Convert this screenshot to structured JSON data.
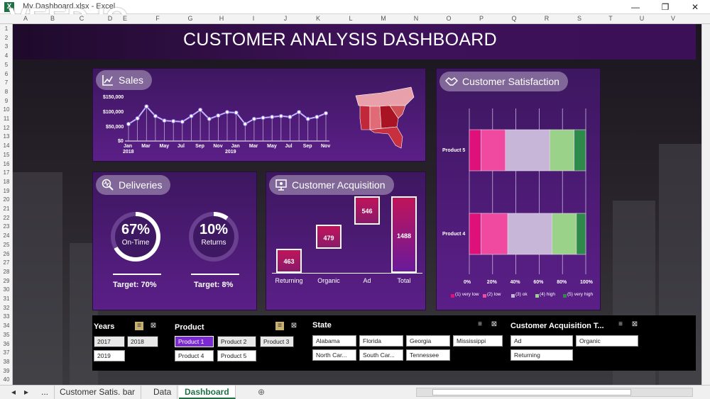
{
  "window": {
    "title": "My Dashboard.xlsx - Excel",
    "watermark": "VEED.IO"
  },
  "columns": [
    "A",
    "B",
    "C",
    "D",
    "E",
    "F",
    "G",
    "H",
    "I",
    "J",
    "K",
    "L",
    "M",
    "N",
    "O",
    "P",
    "Q",
    "R",
    "S",
    "T",
    "U",
    "V"
  ],
  "rows": [
    "1",
    "2",
    "3",
    "4",
    "5",
    "6",
    "7",
    "8",
    "9",
    "10",
    "11",
    "12",
    "13",
    "14",
    "15",
    "16",
    "17",
    "18",
    "19",
    "20",
    "21",
    "22",
    "23",
    "24",
    "25",
    "26",
    "27",
    "28",
    "29",
    "30",
    "31",
    "32",
    "33",
    "34",
    "35",
    "36",
    "37",
    "38",
    "39",
    "40"
  ],
  "dashboard": {
    "title": "CUSTOMER ANALYSIS DASHBOARD"
  },
  "sales": {
    "label": "Sales",
    "y_ticks": [
      "$150,000",
      "$100,000",
      "$50,000",
      "$0"
    ],
    "x_ticks": [
      "Jan",
      "Mar",
      "May",
      "Jul",
      "Sep",
      "Nov",
      "Jan",
      "Mar",
      "May",
      "Jul",
      "Sep",
      "Nov"
    ],
    "years": [
      "2018",
      "2019"
    ]
  },
  "satisfaction": {
    "label": "Customer Satisfaction",
    "products": [
      "Product 5",
      "Product 4"
    ],
    "x_ticks": [
      "0%",
      "20%",
      "40%",
      "60%",
      "80%",
      "100%"
    ],
    "legend": [
      "(1) very low",
      "(2) low",
      "(3) ok",
      "(4) high",
      "(5) very high"
    ]
  },
  "deliveries": {
    "label": "Deliveries",
    "ontime": {
      "pct": "67%",
      "label": "On-Time",
      "value": 0.67,
      "target": "Target: 70%"
    },
    "returns": {
      "pct": "10%",
      "label": "Returns",
      "value": 0.1,
      "target": "Target: 8%"
    }
  },
  "acquisition": {
    "label": "Customer Acquisition"
  },
  "chart_data": [
    {
      "type": "line",
      "title": "Sales",
      "x": [
        "Jan 2018",
        "Feb",
        "Mar",
        "Apr",
        "May",
        "Jun",
        "Jul",
        "Aug",
        "Sep",
        "Oct",
        "Nov",
        "Dec",
        "Jan 2019",
        "Feb",
        "Mar",
        "Apr",
        "May",
        "Jun",
        "Jul",
        "Aug",
        "Sep",
        "Oct",
        "Nov"
      ],
      "values": [
        60000,
        80000,
        122000,
        88000,
        72000,
        70000,
        68000,
        88000,
        110000,
        78000,
        90000,
        102000,
        100000,
        60000,
        78000,
        82000,
        85000,
        88000,
        85000,
        102000,
        78000,
        85000,
        98000
      ],
      "ylim": [
        0,
        150000
      ]
    },
    {
      "type": "bar",
      "title": "Customer Satisfaction",
      "categories": [
        "Product 5",
        "Product 4"
      ],
      "series": [
        {
          "name": "(1) very low",
          "values": [
            0.1,
            0.1
          ]
        },
        {
          "name": "(2) low",
          "values": [
            0.21,
            0.23
          ]
        },
        {
          "name": "(3) ok",
          "values": [
            0.38,
            0.38
          ]
        },
        {
          "name": "(4) high",
          "values": [
            0.21,
            0.21
          ]
        },
        {
          "name": "(5) very high",
          "values": [
            0.1,
            0.08
          ]
        }
      ],
      "xlim": [
        0,
        1
      ]
    },
    {
      "type": "bar",
      "title": "Customer Acquisition",
      "categories": [
        "Returning",
        "Organic",
        "Ad",
        "Total"
      ],
      "values": [
        463,
        479,
        546,
        1488
      ]
    }
  ],
  "colors": {
    "sat": [
      "#e0107a",
      "#f04aa0",
      "#c8b6d8",
      "#9ad28a",
      "#2e8a4a"
    ],
    "wf_total": "#c0145a"
  },
  "slicers": {
    "years": {
      "title": "Years",
      "items": [
        "2017",
        "2018",
        "2019"
      ]
    },
    "product": {
      "title": "Product",
      "items": [
        "Product 1",
        "Product 2",
        "Product 3",
        "Product 4",
        "Product 5"
      ]
    },
    "state": {
      "title": "State",
      "items": [
        "Alabama",
        "Florida",
        "Georgia",
        "Mississippi",
        "North Car...",
        "South Car...",
        "Tennessee"
      ]
    },
    "acq": {
      "title": "Customer Acquisition T...",
      "items": [
        "Ad",
        "Organic",
        "Returning"
      ]
    }
  },
  "tabs": [
    "...",
    "Customer Satis. bar",
    "Data",
    "Dashboard"
  ]
}
